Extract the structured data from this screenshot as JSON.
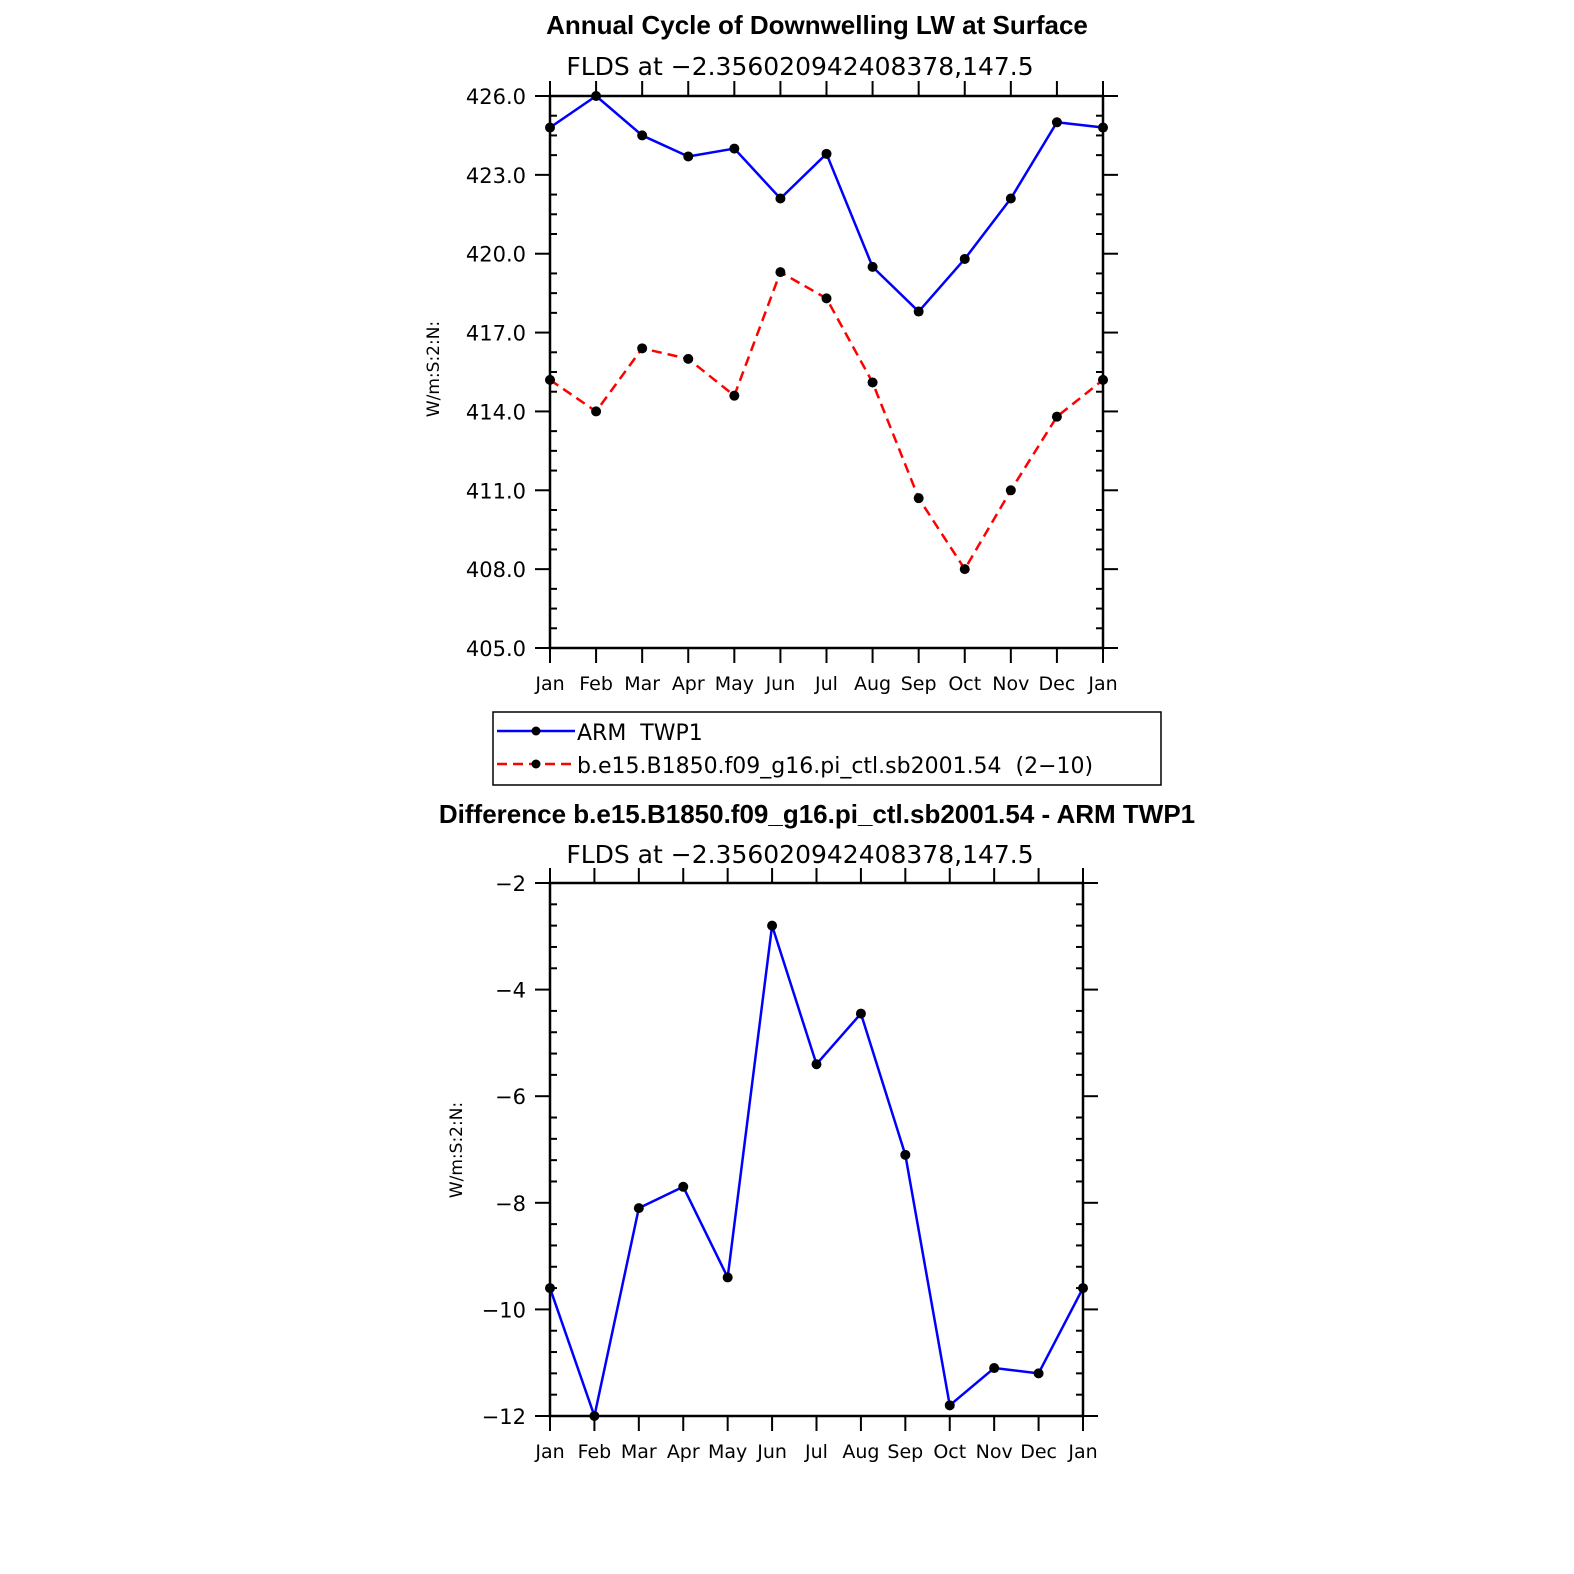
{
  "chart_data": [
    {
      "type": "line",
      "title": "Annual Cycle of Downwelling LW at Surface",
      "subtitle": "FLDS at −2.356020942408378,147.5",
      "ylabel": "W/m:S:2:N:",
      "xlabel": "",
      "categories": [
        "Jan",
        "Feb",
        "Mar",
        "Apr",
        "May",
        "Jun",
        "Jul",
        "Aug",
        "Sep",
        "Oct",
        "Nov",
        "Dec",
        "Jan"
      ],
      "ylim": [
        405.0,
        426.0
      ],
      "yticks": [
        405.0,
        408.0,
        411.0,
        414.0,
        417.0,
        420.0,
        423.0,
        426.0
      ],
      "ytick_labels": [
        "405.0",
        "408.0",
        "411.0",
        "414.0",
        "417.0",
        "420.0",
        "423.0",
        "426.0"
      ],
      "series": [
        {
          "name": "ARM  TWP1",
          "color": "#0000ff",
          "dash": "solid",
          "values": [
            424.8,
            426.0,
            424.5,
            423.7,
            424.0,
            422.1,
            423.8,
            419.5,
            417.8,
            419.8,
            422.1,
            425.0,
            424.8
          ]
        },
        {
          "name": "b.e15.B1850.f09_g16.pi_ctl.sb2001.54  (2−10)",
          "color": "#ff0000",
          "dash": "dashed",
          "values": [
            415.2,
            414.0,
            416.4,
            416.0,
            414.6,
            419.3,
            418.3,
            415.1,
            410.7,
            408.0,
            411.0,
            413.8,
            415.2
          ]
        }
      ]
    },
    {
      "type": "line",
      "title": "Difference b.e15.B1850.f09_g16.pi_ctl.sb2001.54 - ARM TWP1",
      "subtitle": "FLDS at −2.356020942408378,147.5",
      "ylabel": "W/m:S:2:N:",
      "xlabel": "",
      "categories": [
        "Jan",
        "Feb",
        "Mar",
        "Apr",
        "May",
        "Jun",
        "Jul",
        "Aug",
        "Sep",
        "Oct",
        "Nov",
        "Dec",
        "Jan"
      ],
      "ylim": [
        -12,
        -2
      ],
      "yticks": [
        -12,
        -10,
        -8,
        -6,
        -4,
        -2
      ],
      "ytick_labels": [
        "−12",
        "−10",
        "−8",
        "−6",
        "−4",
        "−2"
      ],
      "series": [
        {
          "name": "Difference",
          "color": "#0000ff",
          "dash": "solid",
          "values": [
            -9.6,
            -12.0,
            -8.1,
            -7.7,
            -9.4,
            -2.8,
            -5.4,
            -4.45,
            -7.1,
            -11.8,
            -11.1,
            -11.2,
            -9.6
          ]
        }
      ]
    }
  ]
}
